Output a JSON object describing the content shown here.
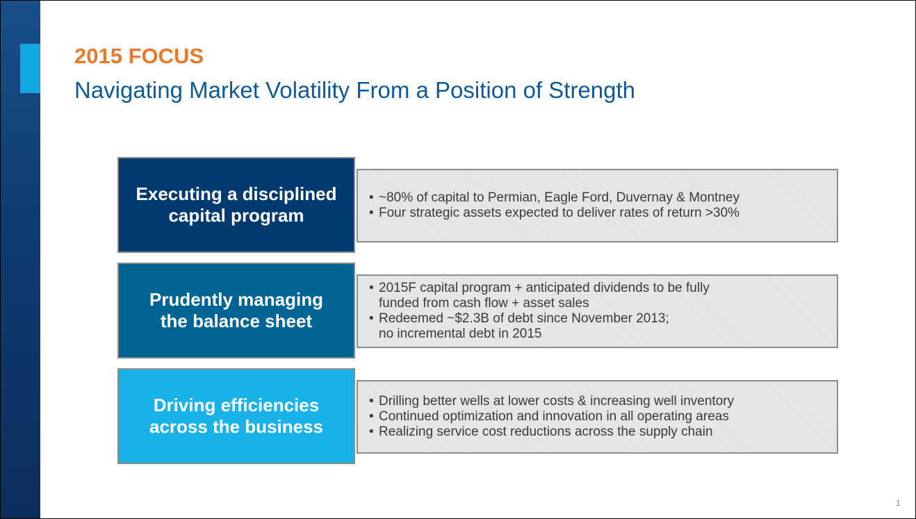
{
  "header": {
    "kicker": "2015 FOCUS",
    "title": "Navigating Market Volatility From a Position of Strength"
  },
  "rows": [
    {
      "label": [
        "Executing a disciplined",
        "capital program"
      ],
      "bullets": [
        [
          "~80% of capital to Permian, Eagle Ford, Duvernay & Montney"
        ],
        [
          "Four strategic assets expected to deliver rates of return >30%"
        ]
      ]
    },
    {
      "label": [
        "Prudently managing",
        "the balance sheet"
      ],
      "bullets": [
        [
          "2015F capital program + anticipated dividends to be fully",
          "funded from cash flow + asset sales"
        ],
        [
          "Redeemed ~$2.3B of debt since November 2013;",
          "no incremental debt in 2015"
        ]
      ]
    },
    {
      "label": [
        "Driving efficiencies",
        "across the business"
      ],
      "bullets": [
        [
          "Drilling better wells at lower costs & increasing well inventory"
        ],
        [
          "Continued optimization and innovation in all operating areas"
        ],
        [
          "Realizing service cost reductions across the supply chain"
        ]
      ]
    }
  ],
  "page_number": "1"
}
